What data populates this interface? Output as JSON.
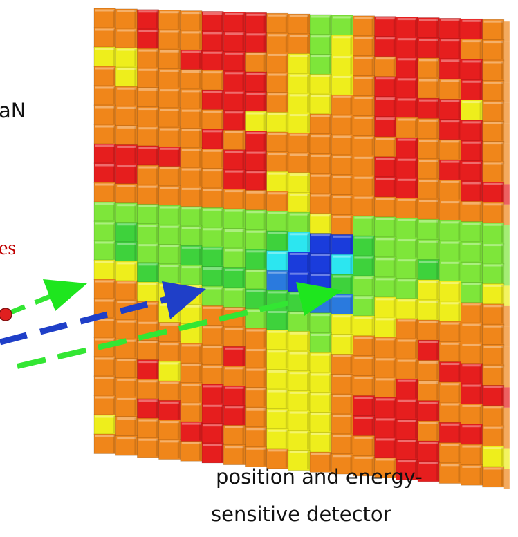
{
  "labels": {
    "material": "aN",
    "particles": "es",
    "detector_line_1": "position and energy-",
    "detector_line_2": "sensitive detector"
  }
}
